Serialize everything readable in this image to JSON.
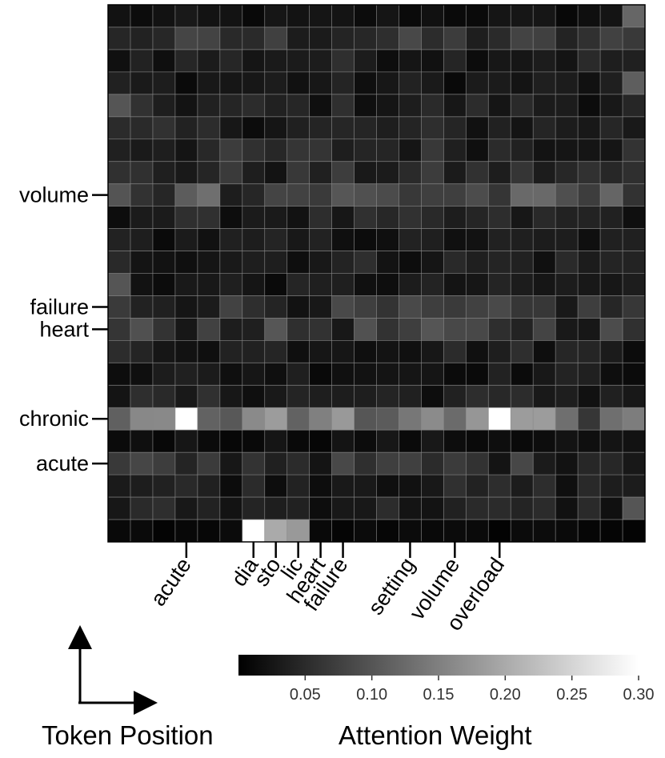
{
  "chart_data": {
    "type": "heatmap",
    "rows": 24,
    "cols": 24,
    "y_tick_labels": [
      "volume",
      "failure",
      "heart",
      "chronic",
      "acute"
    ],
    "x_tick_labels": [
      "acute",
      "dia",
      "sto",
      "lic",
      "heart",
      "failure",
      "setting",
      "volume",
      "overload"
    ],
    "y_tick_rows": [
      8.5,
      13.5,
      14.5,
      18.5,
      20.5
    ],
    "x_tick_cols": [
      3.5,
      6.5,
      7.5,
      8.5,
      9.5,
      10.5,
      13.5,
      15.5,
      17.5
    ],
    "colorbar": {
      "min": 0,
      "max": 0.3,
      "ticks": [
        0.05,
        0.1,
        0.15,
        0.2,
        0.25,
        0.3
      ],
      "tick_labels": [
        "0.05",
        "0.10",
        "0.15",
        "0.20",
        "0.25",
        "0.30"
      ],
      "label": "Attention Weight",
      "colormap": "gray"
    },
    "axis_label": "Token Position",
    "highlights": [
      {
        "row": 18,
        "col": 3,
        "value": 0.3
      },
      {
        "row": 18,
        "col": 17,
        "value": 0.3
      },
      {
        "row": 23,
        "col": 6,
        "value": 0.3
      },
      {
        "row": 23,
        "col": 7,
        "value": 0.2
      },
      {
        "row": 23,
        "col": 8,
        "value": 0.18
      },
      {
        "row": 18,
        "col": 10,
        "value": 0.18
      },
      {
        "row": 18,
        "col": 9,
        "value": 0.15
      },
      {
        "row": 18,
        "col": 1,
        "value": 0.16
      },
      {
        "row": 18,
        "col": 13,
        "value": 0.14
      },
      {
        "row": 18,
        "col": 20,
        "value": 0.13
      },
      {
        "row": 8,
        "col": 4,
        "value": 0.13
      },
      {
        "row": 0,
        "col": 23,
        "value": 0.12
      },
      {
        "row": 3,
        "col": 23,
        "value": 0.11
      },
      {
        "row": 4,
        "col": 0,
        "value": 0.1
      },
      {
        "row": 12,
        "col": 0,
        "value": 0.1
      },
      {
        "row": 22,
        "col": 23,
        "value": 0.1
      }
    ],
    "row_levels": [
      0.02,
      0.06,
      0.04,
      0.03,
      0.04,
      0.04,
      0.05,
      0.05,
      0.09,
      0.04,
      0.03,
      0.04,
      0.03,
      0.06,
      0.07,
      0.04,
      0.03,
      0.04,
      0.13,
      0.02,
      0.06,
      0.04,
      0.04,
      0.01
    ]
  }
}
